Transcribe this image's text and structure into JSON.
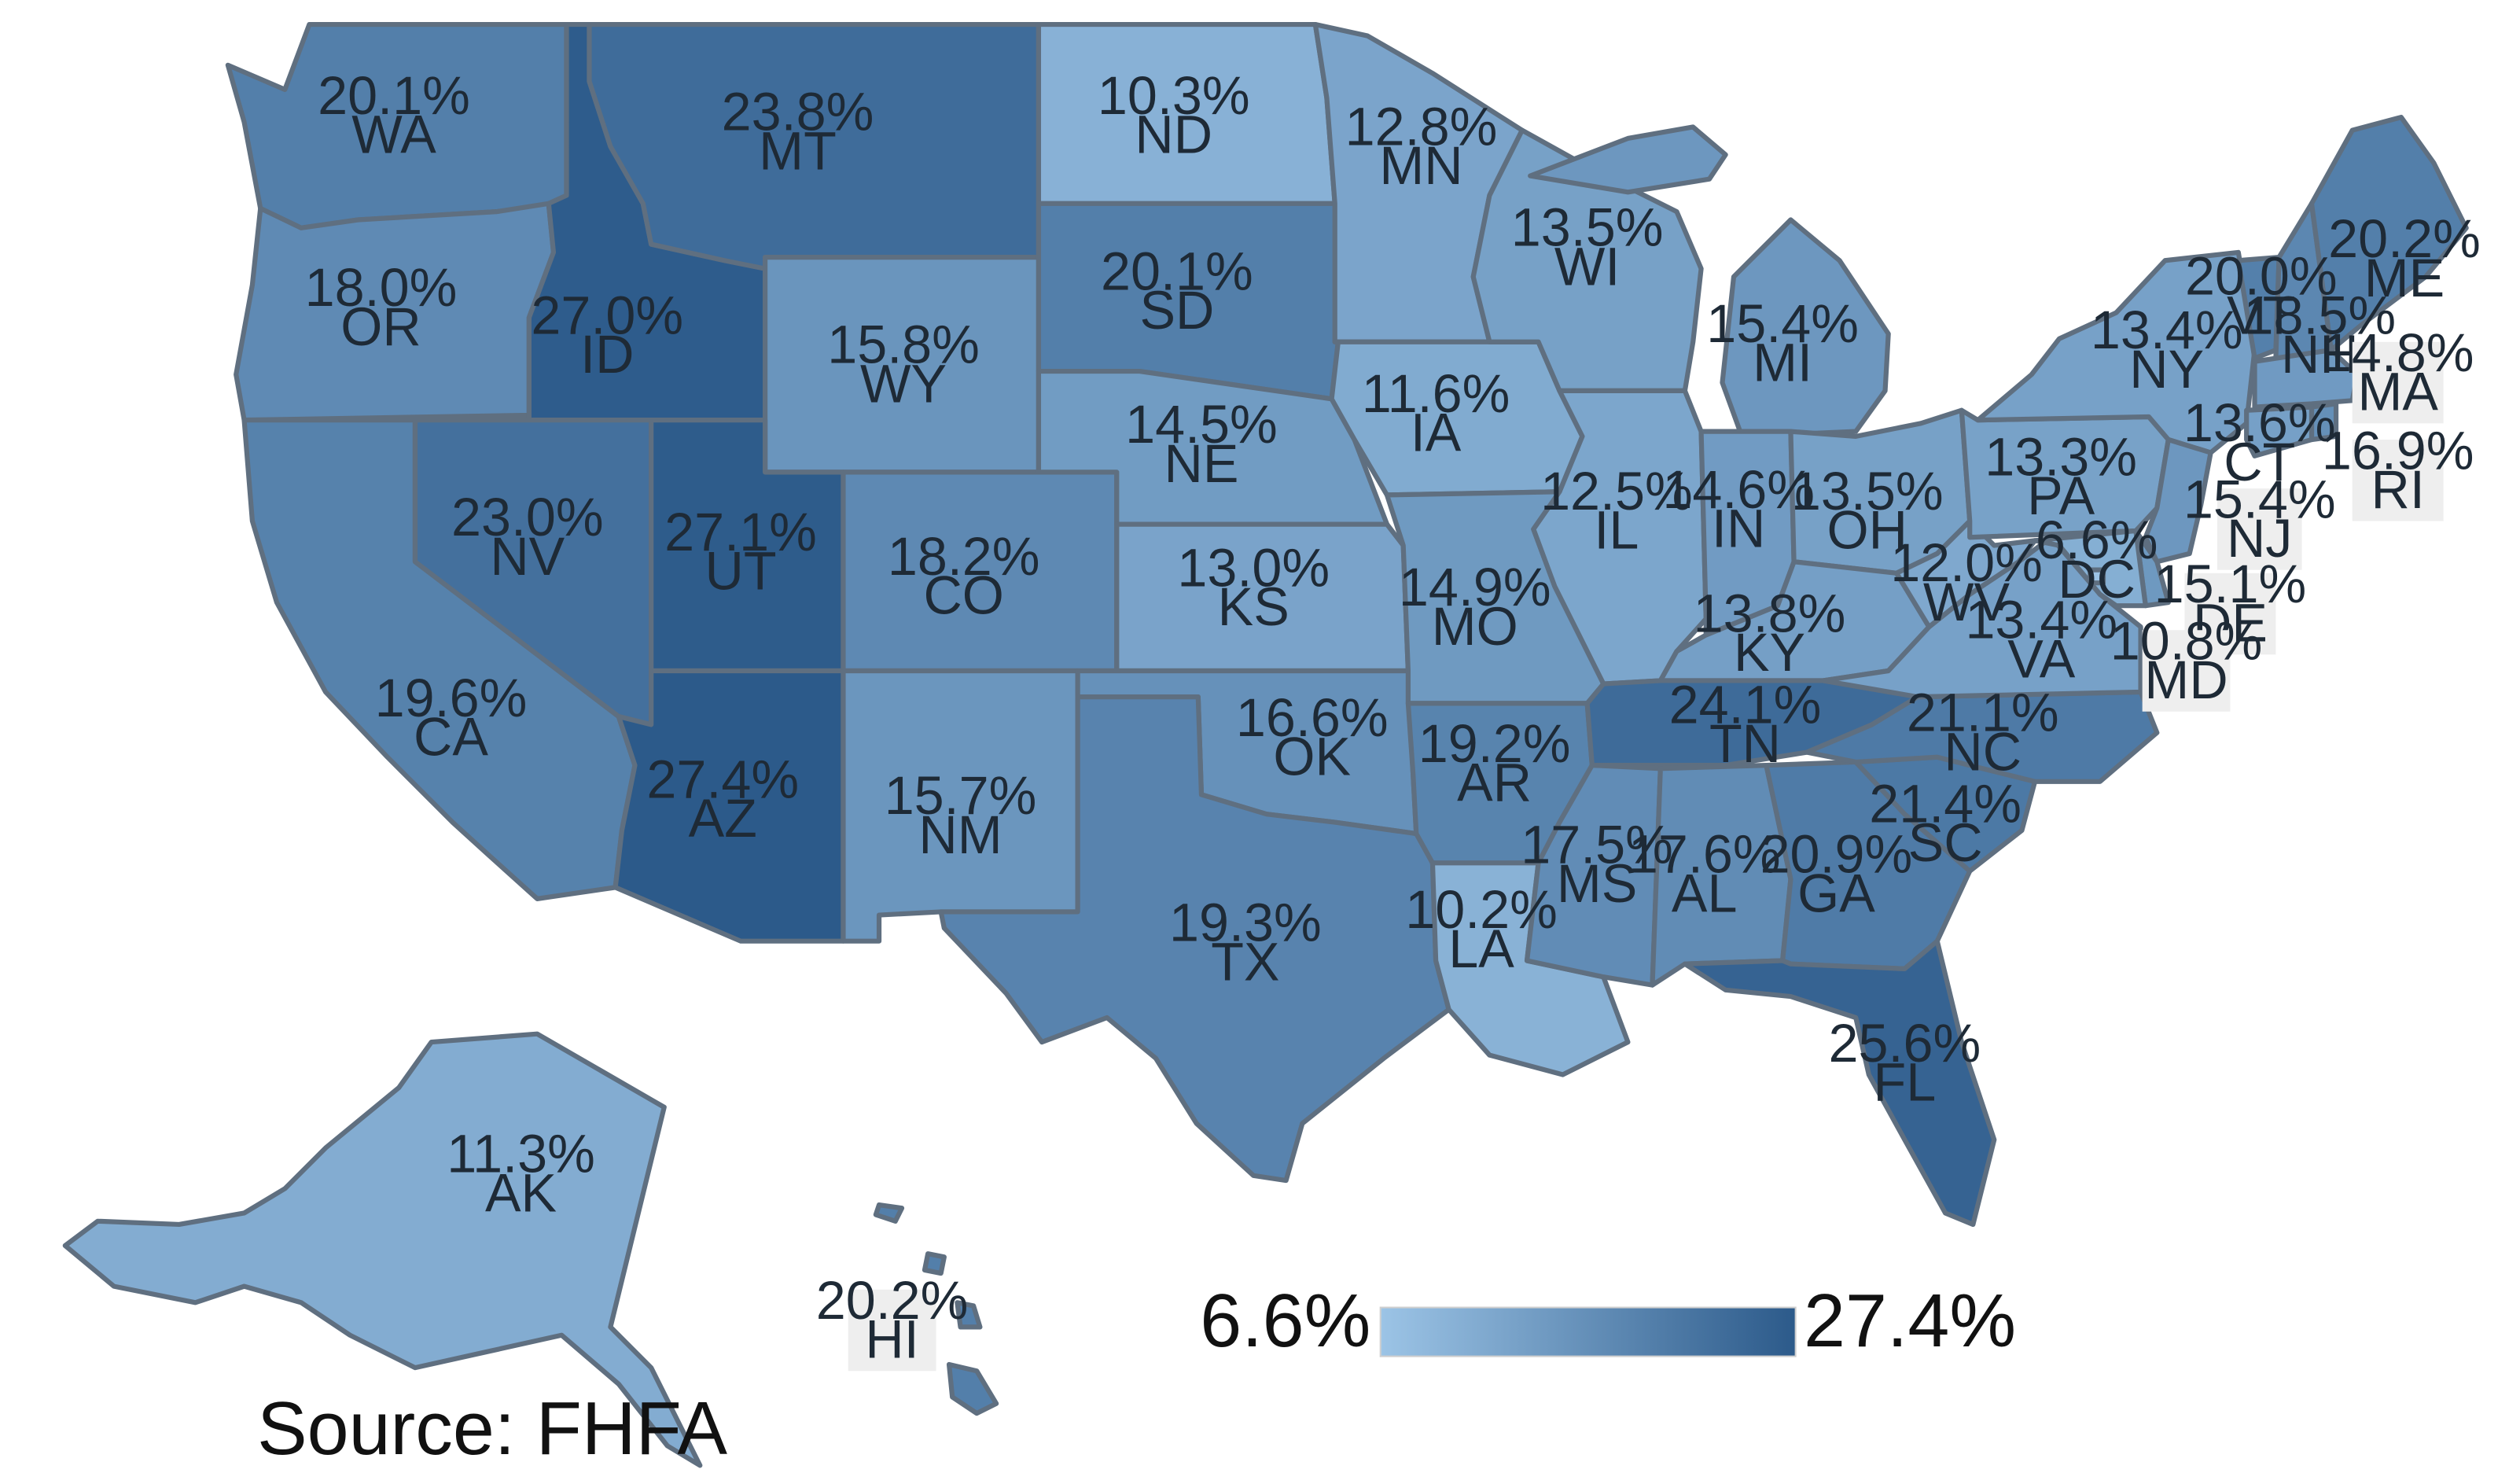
{
  "map": {
    "scale": {
      "min": 6.6,
      "max": 27.4,
      "min_label": "6.6%",
      "max_label": "27.4%",
      "color_low": "#9cc4e6",
      "color_high": "#2c5a8a"
    },
    "source": "Source:  FHFA",
    "states": [
      {
        "code": "WA",
        "value": 20.1,
        "pct": "20.1%"
      },
      {
        "code": "OR",
        "value": 18.0,
        "pct": "18.0%"
      },
      {
        "code": "CA",
        "value": 19.6,
        "pct": "19.6%"
      },
      {
        "code": "ID",
        "value": 27.0,
        "pct": "27.0%"
      },
      {
        "code": "NV",
        "value": 23.0,
        "pct": "23.0%"
      },
      {
        "code": "MT",
        "value": 23.8,
        "pct": "23.8%"
      },
      {
        "code": "WY",
        "value": 15.8,
        "pct": "15.8%"
      },
      {
        "code": "UT",
        "value": 27.1,
        "pct": "27.1%"
      },
      {
        "code": "AZ",
        "value": 27.4,
        "pct": "27.4%"
      },
      {
        "code": "CO",
        "value": 18.2,
        "pct": "18.2%"
      },
      {
        "code": "NM",
        "value": 15.7,
        "pct": "15.7%"
      },
      {
        "code": "ND",
        "value": 10.3,
        "pct": "10.3%"
      },
      {
        "code": "SD",
        "value": 20.1,
        "pct": "20.1%"
      },
      {
        "code": "NE",
        "value": 14.5,
        "pct": "14.5%"
      },
      {
        "code": "KS",
        "value": 13.0,
        "pct": "13.0%"
      },
      {
        "code": "OK",
        "value": 16.6,
        "pct": "16.6%"
      },
      {
        "code": "TX",
        "value": 19.3,
        "pct": "19.3%"
      },
      {
        "code": "MN",
        "value": 12.8,
        "pct": "12.8%"
      },
      {
        "code": "IA",
        "value": 11.6,
        "pct": "11.6%"
      },
      {
        "code": "MO",
        "value": 14.9,
        "pct": "14.9%"
      },
      {
        "code": "AR",
        "value": 19.2,
        "pct": "19.2%"
      },
      {
        "code": "LA",
        "value": 10.2,
        "pct": "10.2%"
      },
      {
        "code": "WI",
        "value": 13.5,
        "pct": "13.5%"
      },
      {
        "code": "IL",
        "value": 12.5,
        "pct": "12.5%"
      },
      {
        "code": "MI",
        "value": 15.4,
        "pct": "15.4%"
      },
      {
        "code": "IN",
        "value": 14.6,
        "pct": "14.6%"
      },
      {
        "code": "OH",
        "value": 13.5,
        "pct": "13.5%"
      },
      {
        "code": "KY",
        "value": 13.8,
        "pct": "13.8%"
      },
      {
        "code": "TN",
        "value": 24.1,
        "pct": "24.1%"
      },
      {
        "code": "MS",
        "value": 17.5,
        "pct": "17.5%"
      },
      {
        "code": "AL",
        "value": 17.6,
        "pct": "17.6%"
      },
      {
        "code": "GA",
        "value": 20.9,
        "pct": "20.9%"
      },
      {
        "code": "FL",
        "value": 25.6,
        "pct": "25.6%"
      },
      {
        "code": "SC",
        "value": 21.4,
        "pct": "21.4%"
      },
      {
        "code": "NC",
        "value": 21.1,
        "pct": "21.1%"
      },
      {
        "code": "VA",
        "value": 13.4,
        "pct": "13.4%"
      },
      {
        "code": "WV",
        "value": 12.0,
        "pct": "12.0%"
      },
      {
        "code": "PA",
        "value": 13.3,
        "pct": "13.3%"
      },
      {
        "code": "NY",
        "value": 13.4,
        "pct": "13.4%"
      },
      {
        "code": "VT",
        "value": 20.0,
        "pct": "20.0%"
      },
      {
        "code": "NH",
        "value": 18.5,
        "pct": "18.5%"
      },
      {
        "code": "ME",
        "value": 20.2,
        "pct": "20.2%"
      },
      {
        "code": "MA",
        "value": 14.8,
        "pct": "14.8%"
      },
      {
        "code": "RI",
        "value": 16.9,
        "pct": "16.9%"
      },
      {
        "code": "CT",
        "value": 13.6,
        "pct": "13.6%"
      },
      {
        "code": "NJ",
        "value": 15.4,
        "pct": "15.4%"
      },
      {
        "code": "DE",
        "value": 15.1,
        "pct": "15.1%"
      },
      {
        "code": "MD",
        "value": 10.8,
        "pct": "10.8%"
      },
      {
        "code": "DC",
        "value": 6.6,
        "pct": "6.6%"
      },
      {
        "code": "AK",
        "value": 11.3,
        "pct": "11.3%"
      },
      {
        "code": "HI",
        "value": 20.2,
        "pct": "20.2%"
      }
    ]
  }
}
